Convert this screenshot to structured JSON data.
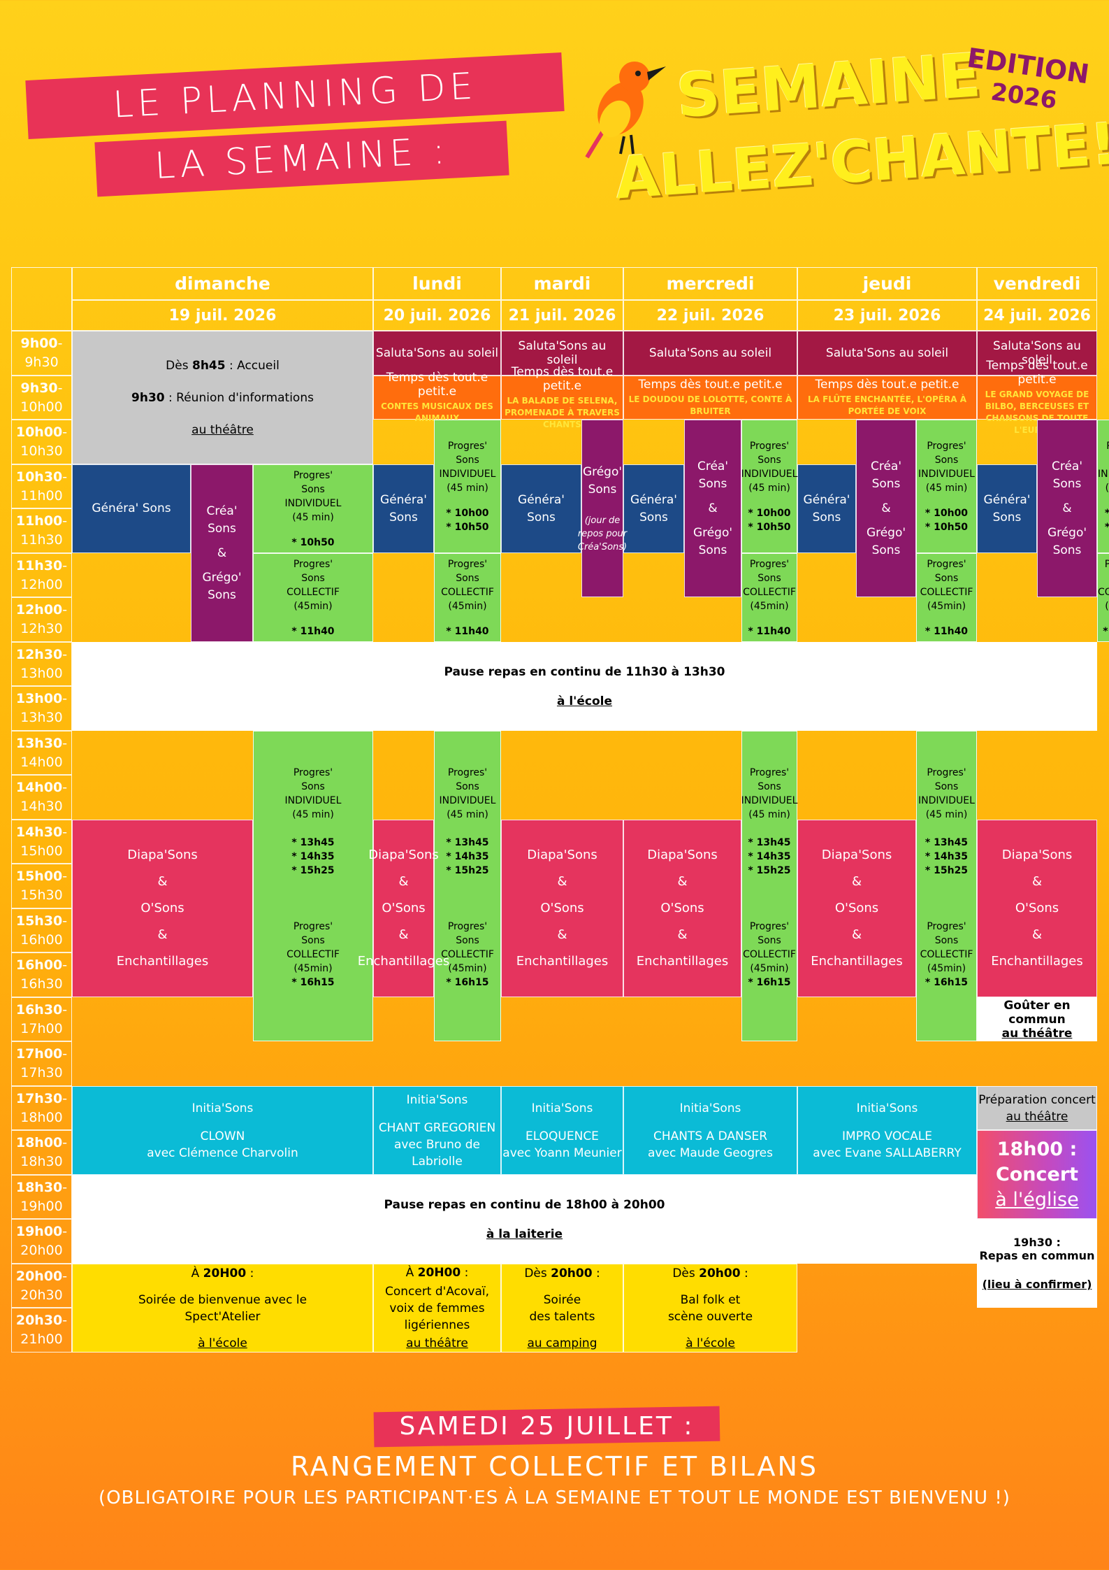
{
  "header": {
    "title_line1": "LE PLANNING DE",
    "title_line2": "LA SEMAINE :",
    "brand_line1": "SEMAINE",
    "brand_line2": "ALLEZ'CHANTE!",
    "edition_line1": "EDITION",
    "edition_line2": "2026",
    "bird_icon": "bird-icon",
    "colors": {
      "title_bg": "#e83357",
      "brand_text": "#ffef1d",
      "edition_text": "#8c186a"
    }
  },
  "days": [
    {
      "name": "dimanche",
      "date": "19 juil. 2026"
    },
    {
      "name": "lundi",
      "date": "20 juil. 2026"
    },
    {
      "name": "mardi",
      "date": "21 juil. 2026"
    },
    {
      "name": "mercredi",
      "date": "22 juil. 2026"
    },
    {
      "name": "jeudi",
      "date": "23 juil. 2026"
    },
    {
      "name": "vendredi",
      "date": "24 juil. 2026"
    }
  ],
  "times": [
    {
      "start": "9h00",
      "end": "9h30"
    },
    {
      "start": "9h30",
      "end": "10h00"
    },
    {
      "start": "10h00",
      "end": "10h30"
    },
    {
      "start": "10h30",
      "end": "11h00"
    },
    {
      "start": "11h00",
      "end": "11h30"
    },
    {
      "start": "11h30",
      "end": "12h00"
    },
    {
      "start": "12h00",
      "end": "12h30"
    },
    {
      "start": "12h30",
      "end": "13h00"
    },
    {
      "start": "13h00",
      "end": "13h30"
    },
    {
      "start": "13h30",
      "end": "14h00"
    },
    {
      "start": "14h00",
      "end": "14h30"
    },
    {
      "start": "14h30",
      "end": "15h00"
    },
    {
      "start": "15h00",
      "end": "15h30"
    },
    {
      "start": "15h30",
      "end": "16h00"
    },
    {
      "start": "16h00",
      "end": "16h30"
    },
    {
      "start": "16h30",
      "end": "17h00"
    },
    {
      "start": "17h00",
      "end": "17h30"
    },
    {
      "start": "17h30",
      "end": "18h00"
    },
    {
      "start": "18h00",
      "end": "18h30"
    },
    {
      "start": "18h30",
      "end": "19h00"
    },
    {
      "start": "19h00",
      "end": "20h00"
    },
    {
      "start": "20h00",
      "end": "20h30"
    },
    {
      "start": "20h30",
      "end": "21h00"
    }
  ],
  "sunday_morning": {
    "from_prefix": "Dès ",
    "from_time": "8h45",
    "from_suffix": " : Accueil",
    "meeting_time": "9h30",
    "meeting_text": " : Réunion d'informations",
    "place": "au théâtre"
  },
  "salutasons": "Saluta'Sons au soleil",
  "temps_title": "Temps dès tout.e petit.e",
  "temps_subs": [
    "CONTES MUSICAUX DES ANIMAUX",
    "LA BALADE DE SELENA, PROMENADE À TRAVERS CHANTS",
    "LE DOUDOU DE LOLOTTE, CONTE À BRUITER",
    "LA FLÛTE ENCHANTÉE, L'OPÉRA À PORTÉE DE VOIX",
    "LE GRAND VOYAGE DE BILBO, BERCEUSES ET CHANSONS DE TOUTE L'EUROPE"
  ],
  "generasons": "Généra' Sons",
  "creasons": {
    "l1": "Créa'",
    "l2": "Sons",
    "l3": "&",
    "l4": "Grégo'",
    "l5": "Sons"
  },
  "gregosons": {
    "l1": "Grégo'",
    "l2": "Sons",
    "note": "(jour de repos pour Créa'Sons)"
  },
  "prog_ind": {
    "l1": "Progres'",
    "l2": "Sons",
    "l3": "INDIVIDUEL",
    "l4": "(45 min)",
    "t_sun": "* 10h50",
    "t1": "* 10h00",
    "t2": "* 10h50"
  },
  "prog_col": {
    "l1": "Progres'",
    "l2": "Sons",
    "l3": "COLLECTIF",
    "l4": "(45min)",
    "t": "* 11h40"
  },
  "prog_pm": {
    "t1": "* 13h45",
    "t2": "* 14h35",
    "t3": "* 15h25",
    "tc": "* 16h15"
  },
  "lunch": {
    "text": "Pause repas en continu de 11h30 à 13h30",
    "place": "à l'école"
  },
  "diapa": {
    "l1": "Diapa'Sons",
    "l2": "&",
    "l3": "O'Sons",
    "l4": "&",
    "l5": "Enchantillages"
  },
  "gouter": {
    "text": "Goûter en commun",
    "place": "au théâtre"
  },
  "initia": {
    "title": "Initia'Sons",
    "items": [
      {
        "a": "CLOWN",
        "b": "avec Clémence Charvolin"
      },
      {
        "a": "CHANT GREGORIEN",
        "b": "avec Bruno de Labriolle"
      },
      {
        "a": "ELOQUENCE",
        "b": "avec Yoann Meunier"
      },
      {
        "a": "CHANTS A DANSER",
        "b": "avec Maude Geogres"
      },
      {
        "a": "IMPRO VOCALE",
        "b": "avec Evane SALLABERRY"
      }
    ]
  },
  "prep": {
    "text": "Préparation concert",
    "place": "au théâtre"
  },
  "concert": {
    "text": "18h00 : Concert",
    "place": "à l'église"
  },
  "dinner": {
    "text": "Pause repas en continu de 18h00 à 20h00",
    "place": "à la laiterie"
  },
  "friday_dinner": {
    "l1": "19h30 :",
    "l2": "Repas en commun",
    "place": "(lieu à confirmer)"
  },
  "evenings": [
    {
      "pre": "À ",
      "time": "20H00",
      "post": " :",
      "desc1": "Soirée de bienvenue avec le",
      "desc2": "Spect'Atelier",
      "place": "à l'école"
    },
    {
      "pre": "À ",
      "time": "20H00",
      "post": " :",
      "desc1": "Concert d'Acovaï,",
      "desc2": "voix de femmes ligériennes",
      "place": "au théâtre"
    },
    {
      "pre": "Dès ",
      "time": "20h00",
      "post": " :",
      "desc1": "Soirée",
      "desc2": "des talents",
      "place": "au camping"
    },
    {
      "pre": "Dès ",
      "time": "20h00",
      "post": " :",
      "desc1": "Bal folk et",
      "desc2": "scène ouverte",
      "place": "à l'école"
    }
  ],
  "footer": {
    "line1": "SAMEDI 25 JUILLET :",
    "line2": "RANGEMENT COLLECTIF ET BILANS",
    "line3": "(OBLIGATOIRE POUR LES PARTICIPANT·ES À LA SEMAINE ET TOUT LE MONDE EST BIENVENU !)"
  }
}
